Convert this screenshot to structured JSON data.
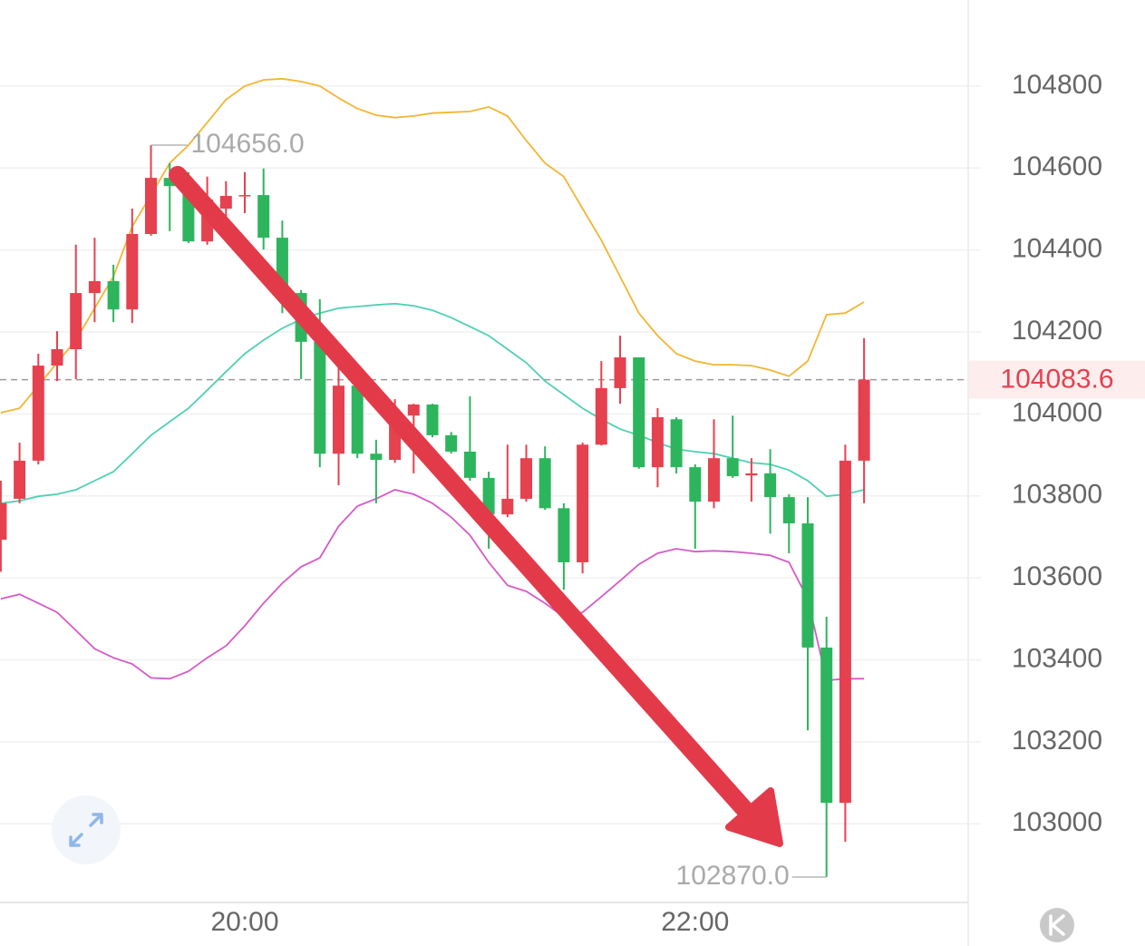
{
  "chart_data": {
    "type": "candlestick",
    "categories": [
      null,
      null,
      null,
      null,
      null,
      null,
      null,
      null,
      null,
      null,
      null,
      null,
      null,
      "20:00",
      null,
      null,
      null,
      null,
      null,
      null,
      null,
      null,
      null,
      null,
      null,
      null,
      null,
      null,
      null,
      null,
      null,
      null,
      null,
      null,
      null,
      null,
      null,
      "22:00",
      null,
      null,
      null,
      null,
      null,
      null,
      null,
      null,
      null
    ],
    "open": [
      103693,
      103793,
      103886,
      104118,
      104158,
      104295,
      104324,
      104255,
      104439,
      104576,
      104556,
      104421,
      104501,
      104532,
      104534,
      104430,
      104295,
      104176,
      103903,
      104069,
      103903,
      103888,
      103996,
      104023,
      103948,
      103908,
      103844,
      103755,
      103793,
      103892,
      103770,
      103638,
      103925,
      104063,
      104138,
      103870,
      103987,
      103870,
      103786,
      103892,
      103850,
      103855,
      103797,
      103733,
      103430,
      103051,
      103886
    ],
    "high": [
      103837,
      103930,
      104147,
      104202,
      104413,
      104430,
      104364,
      104501,
      104656,
      104612,
      104590,
      104579,
      104568,
      104590,
      104599,
      104472,
      104302,
      104280,
      104136,
      104103,
      103937,
      104036,
      104025,
      104025,
      103956,
      104043,
      103859,
      103925,
      103925,
      103921,
      103782,
      103930,
      104129,
      104191,
      104138,
      104014,
      103992,
      103877,
      103987,
      103996,
      103892,
      103914,
      103804,
      103797,
      103505,
      103925,
      104185
    ],
    "low": [
      103615,
      103782,
      103877,
      104080,
      104085,
      104224,
      104224,
      104222,
      104435,
      104446,
      104417,
      104413,
      104446,
      104490,
      104401,
      104246,
      104085,
      103870,
      103826,
      103892,
      103782,
      103881,
      103855,
      103943,
      103903,
      103837,
      103671,
      103748,
      103786,
      103766,
      103571,
      103611,
      103923,
      104025,
      103866,
      103821,
      103855,
      103671,
      103770,
      103844,
      103786,
      103708,
      103660,
      103228,
      102870,
      102956,
      103782
    ],
    "close": [
      103782,
      103886,
      104118,
      104158,
      104295,
      104324,
      104255,
      104439,
      104576,
      104556,
      104421,
      104523,
      104532,
      104534,
      104430,
      104295,
      104176,
      103903,
      104069,
      103903,
      103888,
      104003,
      104023,
      103948,
      103908,
      103844,
      103755,
      103793,
      103892,
      103770,
      103638,
      103925,
      104063,
      104138,
      103870,
      103992,
      103870,
      103786,
      103892,
      103848,
      103855,
      103797,
      103733,
      103430,
      103051,
      103886,
      104083.6
    ],
    "up_color": "#e5414f",
    "down_color": "#2db55d",
    "overlays": [
      {
        "color": "#f2b632",
        "values": [
          104003,
          104014,
          104069,
          104125,
          104180,
          104258,
          104335,
          104457,
          104534,
          104612,
          104656,
          104711,
          104767,
          104800,
          104815,
          104818,
          104811,
          104800,
          104771,
          104745,
          104729,
          104723,
          104727,
          104734,
          104736,
          104738,
          104749,
          104727,
          104667,
          104612,
          104579,
          104501,
          104424,
          104335,
          104246,
          104191,
          104147,
          104129,
          104120,
          104120,
          104118,
          104107,
          104092,
          104129,
          104242,
          104246,
          104273
        ]
      },
      {
        "color": "#4fd1b2",
        "values": [
          103782,
          103788,
          103799,
          103804,
          103815,
          103837,
          103859,
          103903,
          103948,
          103981,
          104014,
          104058,
          104103,
          104147,
          104180,
          104209,
          104231,
          104246,
          104258,
          104262,
          104266,
          104269,
          104264,
          104253,
          104235,
          104213,
          104191,
          104158,
          104125,
          104080,
          104047,
          104014,
          103987,
          103963,
          103948,
          103930,
          103914,
          103908,
          103903,
          103892,
          103881,
          103877,
          103863,
          103837,
          103799,
          103804,
          103815
        ]
      },
      {
        "color": "#d65ac8",
        "values": [
          103549,
          103560,
          103538,
          103516,
          103472,
          103427,
          103405,
          103390,
          103356,
          103354,
          103372,
          103405,
          103434,
          103483,
          103538,
          103587,
          103627,
          103649,
          103726,
          103775,
          103793,
          103815,
          103804,
          103782,
          103748,
          103704,
          103638,
          103582,
          103567,
          103538,
          103505,
          103516,
          103554,
          103593,
          103633,
          103660,
          103671,
          103664,
          103666,
          103664,
          103660,
          103655,
          103638,
          103549,
          103350,
          103354,
          103354
        ]
      }
    ],
    "ylim": [
      102808,
      105010
    ],
    "yticks": [
      103000,
      103200,
      103400,
      103600,
      103800,
      104000,
      104200,
      104400,
      104600,
      104800
    ],
    "grid": true,
    "last_price": 104083.6,
    "annotations": [
      {
        "value": 104656,
        "label": "104656.0"
      },
      {
        "value": 102870,
        "label": "102870.0"
      }
    ]
  }
}
